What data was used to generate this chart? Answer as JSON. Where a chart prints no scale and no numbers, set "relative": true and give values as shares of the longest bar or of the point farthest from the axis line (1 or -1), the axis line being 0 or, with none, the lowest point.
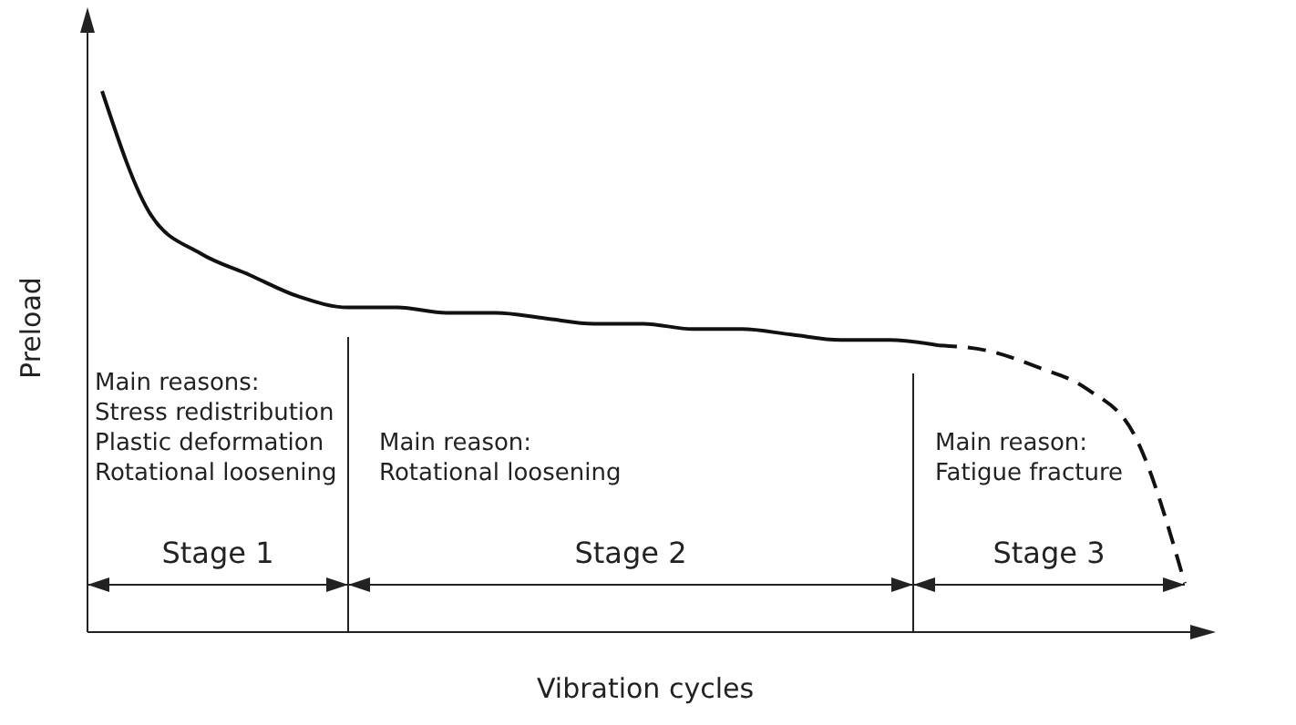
{
  "chart_data": {
    "type": "line",
    "relative": true,
    "xlabel": "Vibration cycles",
    "ylabel": "Preload",
    "marker": "none",
    "categories": [
      null,
      null,
      null,
      null,
      null,
      null,
      null,
      null,
      null,
      null,
      null,
      null,
      null,
      null,
      null,
      null,
      null,
      null,
      null,
      null,
      null,
      null,
      null
    ],
    "series": [
      {
        "color": "#111111",
        "line_style": "solid",
        "values": [
          1.0,
          0.77,
          0.7,
          0.66,
          0.62,
          0.6,
          0.6,
          0.59,
          0.59,
          0.58,
          0.57,
          0.57,
          0.56,
          0.56,
          0.55,
          0.54,
          0.54,
          0.53,
          null,
          null,
          null,
          null,
          null
        ]
      },
      {
        "color": "#111111",
        "line_style": "dashed",
        "values": [
          null,
          null,
          null,
          null,
          null,
          null,
          null,
          null,
          null,
          null,
          null,
          null,
          null,
          null,
          null,
          null,
          null,
          0.53,
          0.52,
          0.49,
          0.45,
          0.36,
          0.09
        ]
      }
    ],
    "annotations": [
      "Main reasons:\nStress redistribution\nPlastic deformation\nRotational loosening",
      "Main reason:\nRotational loosening",
      "Main reason:\nFatigue fracture",
      "Stage 1",
      "Stage 2",
      "Stage 3"
    ]
  }
}
